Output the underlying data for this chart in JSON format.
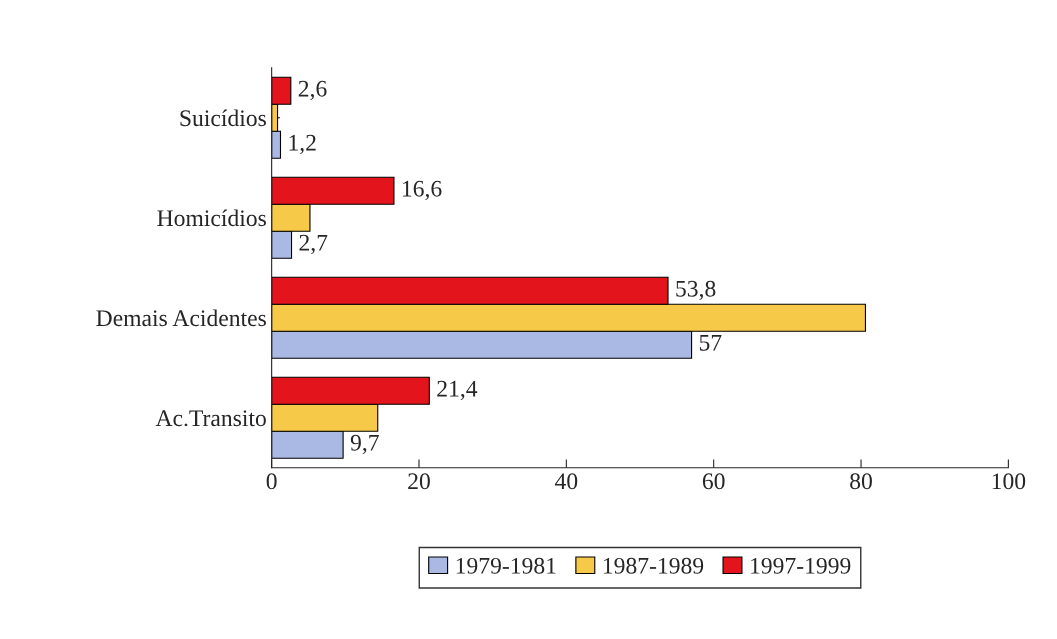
{
  "chart_data": {
    "type": "bar",
    "orientation": "horizontal",
    "categories": [
      "Suicídios",
      "Homicídios",
      "Demais Acidentes",
      "Ac.Transito"
    ],
    "series": [
      {
        "name": "1979-1981",
        "color": "#a9b9e3",
        "values": [
          1.2,
          2.7,
          57,
          9.7
        ],
        "value_labels": [
          "1,2",
          "2,7",
          "57",
          "9,7"
        ]
      },
      {
        "name": "1987-1989",
        "color": "#f7c948",
        "values": [
          0.8,
          5.2,
          80.6,
          14.4
        ]
      },
      {
        "name": "1997-1999",
        "color": "#e3141c",
        "values": [
          2.6,
          16.6,
          53.8,
          21.4
        ],
        "value_labels": [
          "2,6",
          "16,6",
          "53,8",
          "21,4"
        ]
      }
    ],
    "xlim": [
      0,
      100
    ],
    "xticks": [
      0,
      20,
      40,
      60,
      80,
      100
    ],
    "grid": false,
    "legend": "bottom"
  }
}
